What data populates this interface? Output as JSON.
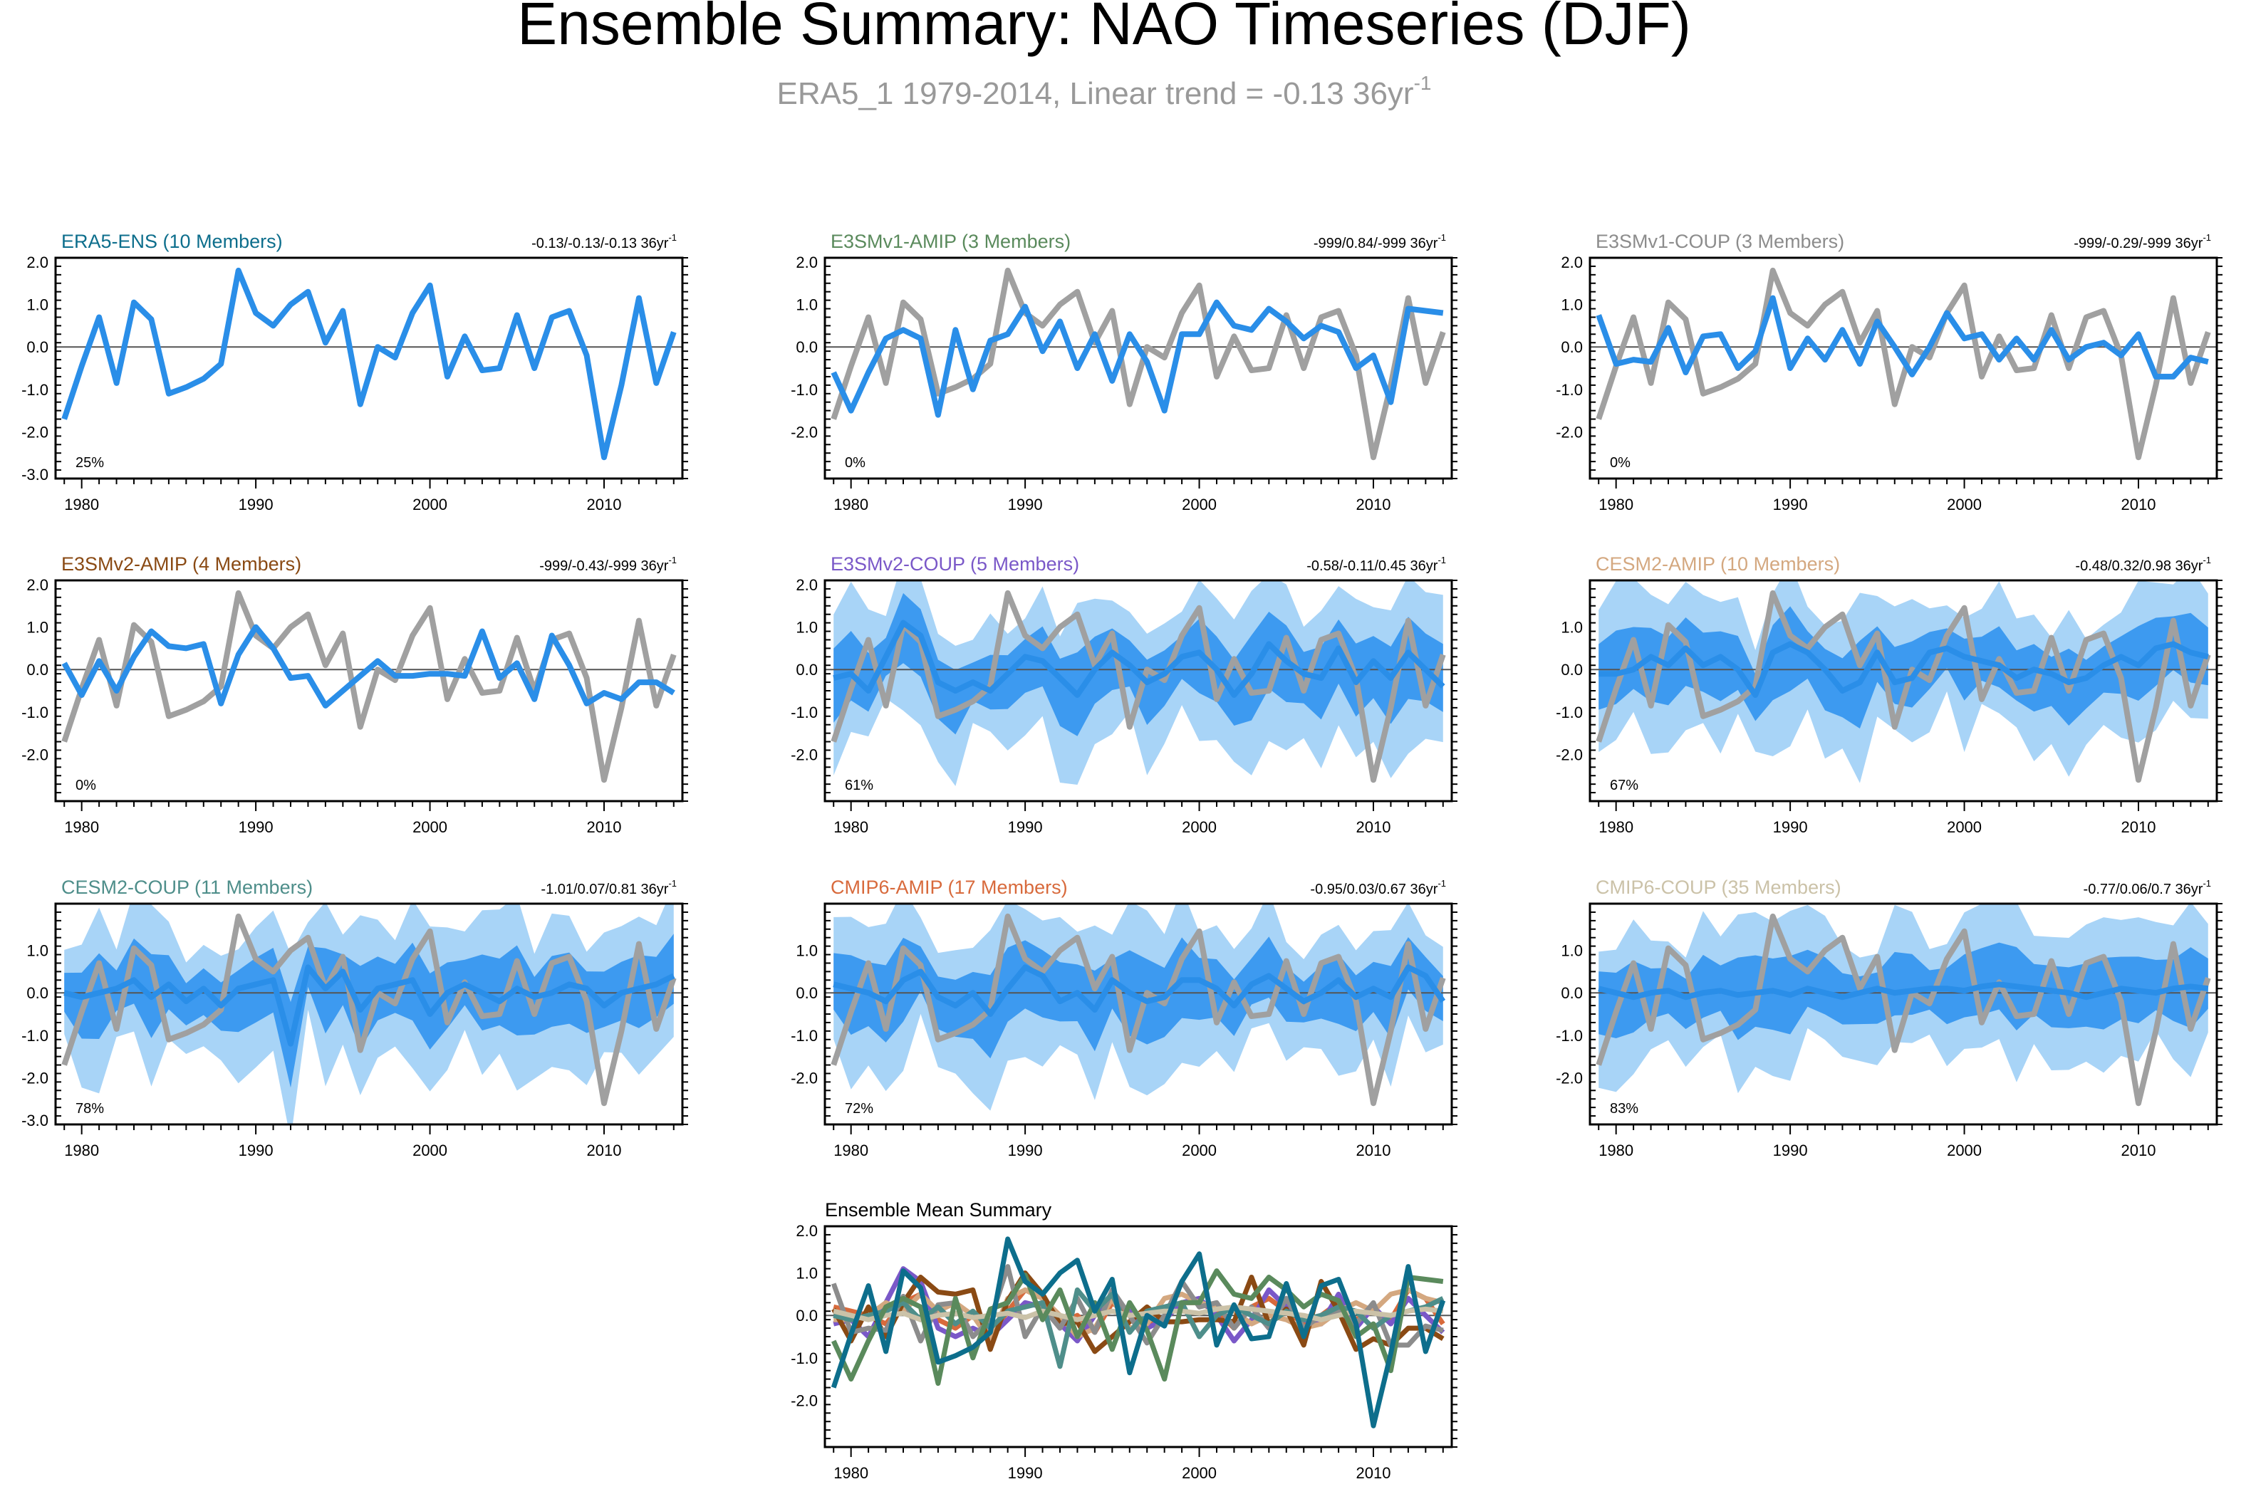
{
  "figure": {
    "title": "Ensemble Summary: NAO Timeseries (DJF)",
    "subtitle_main": "ERA5_1 1979-2014, Linear trend = -0.13 36yr",
    "subtitle_sup": "-1"
  },
  "colors": {
    "obs_grey": "#a0a0a0",
    "mean_blue": "#2a8ee8",
    "band_outer": "#a8d4f7",
    "band_inner": "#3d9af0",
    "zero_line": "#555555"
  },
  "chart_data": [
    {
      "type": "line",
      "title": "ERA5-ENS (10 Members)",
      "title_color": "#0d6e8c",
      "trend_text": "-0.13/-0.13/-0.13 36yr",
      "trend_sup": "-1",
      "pct_label": "25%",
      "ylim": [
        -3.1,
        2.1
      ],
      "yticks": [
        2,
        1,
        0,
        -1,
        -2,
        -3
      ],
      "ytick_labels": [
        "2.0",
        "1.0",
        "0.0",
        "-1.0",
        "-2.0",
        "-3.0"
      ],
      "xlim": [
        1978.5,
        2014.5
      ],
      "xticks": [
        1980,
        1990,
        2000,
        2010
      ],
      "xtick_labels": [
        "1980",
        "1990",
        "2000",
        "2010"
      ],
      "obs": false,
      "spread": 0,
      "series_model": [
        -1.7,
        -0.45,
        0.7,
        -0.85,
        1.05,
        0.65,
        -1.1,
        -0.95,
        -0.75,
        -0.4,
        1.8,
        0.8,
        0.5,
        1.0,
        1.3,
        0.1,
        0.85,
        -1.35,
        0.0,
        -0.25,
        0.8,
        1.45,
        -0.7,
        0.25,
        -0.55,
        -0.5,
        0.75,
        -0.5,
        0.7,
        0.85,
        -0.2,
        -2.6,
        -0.9,
        1.15,
        -0.85,
        0.35
      ]
    },
    {
      "type": "line",
      "title": "E3SMv1-AMIP (3 Members)",
      "title_color": "#5a8a5c",
      "trend_text": "-999/0.84/-999 36yr",
      "trend_sup": "-1",
      "pct_label": "0%",
      "ylim": [
        -3.1,
        2.1
      ],
      "yticks": [
        2,
        1,
        0,
        -1,
        -2
      ],
      "ytick_labels": [
        "2.0",
        "1.0",
        "0.0",
        "-1.0",
        "-2.0"
      ],
      "xlim": [
        1978.5,
        2014.5
      ],
      "xticks": [
        1980,
        1990,
        2000,
        2010
      ],
      "xtick_labels": [
        "1980",
        "1990",
        "2000",
        "2010"
      ],
      "obs": true,
      "spread": 0,
      "series_model": [
        -0.6,
        -1.5,
        -0.6,
        0.2,
        0.4,
        0.2,
        -1.6,
        0.4,
        -1.0,
        0.15,
        0.3,
        0.95,
        -0.1,
        0.6,
        -0.5,
        0.3,
        -0.8,
        0.3,
        -0.35,
        -1.5,
        0.3,
        0.3,
        1.05,
        0.5,
        0.4,
        0.9,
        0.6,
        0.2,
        0.5,
        0.35,
        -0.5,
        -0.2,
        -1.3,
        0.9,
        0.85,
        0.8
      ]
    },
    {
      "type": "line",
      "title": "E3SMv1-COUP (3 Members)",
      "title_color": "#8c8c8c",
      "trend_text": "-999/-0.29/-999 36yr",
      "trend_sup": "-1",
      "pct_label": "0%",
      "ylim": [
        -3.1,
        2.1
      ],
      "yticks": [
        2,
        1,
        0,
        -1,
        -2
      ],
      "ytick_labels": [
        "2.0",
        "1.0",
        "0.0",
        "-1.0",
        "-2.0"
      ],
      "xlim": [
        1978.5,
        2014.5
      ],
      "xticks": [
        1980,
        1990,
        2000,
        2010
      ],
      "xtick_labels": [
        "1980",
        "1990",
        "2000",
        "2010"
      ],
      "obs": true,
      "spread": 0,
      "series_model": [
        0.75,
        -0.4,
        -0.3,
        -0.35,
        0.45,
        -0.6,
        0.25,
        0.3,
        -0.5,
        -0.1,
        1.15,
        -0.5,
        0.2,
        -0.3,
        0.4,
        -0.4,
        0.6,
        0.0,
        -0.65,
        0.0,
        0.8,
        0.2,
        0.3,
        -0.3,
        0.2,
        -0.3,
        0.4,
        -0.3,
        0.0,
        0.1,
        -0.2,
        0.3,
        -0.7,
        -0.7,
        -0.25,
        -0.35
      ]
    },
    {
      "type": "line",
      "title": "E3SMv2-AMIP (4 Members)",
      "title_color": "#8a4a14",
      "trend_text": "-999/-0.43/-999 36yr",
      "trend_sup": "-1",
      "pct_label": "0%",
      "ylim": [
        -3.1,
        2.1
      ],
      "yticks": [
        2,
        1,
        0,
        -1,
        -2
      ],
      "ytick_labels": [
        "2.0",
        "1.0",
        "0.0",
        "-1.0",
        "-2.0"
      ],
      "xlim": [
        1978.5,
        2014.5
      ],
      "xticks": [
        1980,
        1990,
        2000,
        2010
      ],
      "xtick_labels": [
        "1980",
        "1990",
        "2000",
        "2010"
      ],
      "obs": true,
      "spread": 0,
      "series_model": [
        0.15,
        -0.6,
        0.2,
        -0.5,
        0.3,
        0.9,
        0.55,
        0.5,
        0.6,
        -0.8,
        0.35,
        1.0,
        0.5,
        -0.2,
        -0.15,
        -0.85,
        -0.5,
        -0.15,
        0.2,
        -0.15,
        -0.15,
        -0.1,
        -0.1,
        -0.15,
        0.9,
        -0.2,
        0.15,
        -0.7,
        0.8,
        0.1,
        -0.8,
        -0.55,
        -0.7,
        -0.3,
        -0.3,
        -0.55
      ]
    },
    {
      "type": "line",
      "title": "E3SMv2-COUP (5 Members)",
      "title_color": "#7a58c8",
      "trend_text": "-0.58/-0.11/0.45 36yr",
      "trend_sup": "-1",
      "pct_label": "61%",
      "ylim": [
        -3.1,
        2.1
      ],
      "yticks": [
        2,
        1,
        0,
        -1,
        -2
      ],
      "ytick_labels": [
        "2.0",
        "1.0",
        "0.0",
        "-1.0",
        "-2.0"
      ],
      "xlim": [
        1978.5,
        2014.5
      ],
      "xticks": [
        1980,
        1990,
        2000,
        2010
      ],
      "xtick_labels": [
        "1980",
        "1990",
        "2000",
        "2010"
      ],
      "obs": true,
      "spread": 1.0,
      "series_model": [
        -0.2,
        -0.1,
        -0.5,
        0.3,
        1.1,
        0.8,
        -0.3,
        -0.5,
        -0.3,
        -0.5,
        -0.1,
        0.3,
        0.2,
        -0.2,
        -0.6,
        0.0,
        0.4,
        0.1,
        -0.3,
        -0.1,
        0.3,
        0.4,
        0.0,
        -0.6,
        -0.1,
        0.6,
        0.2,
        -0.1,
        -0.2,
        0.5,
        -0.3,
        0.2,
        -0.2,
        0.4,
        0.0,
        -0.4
      ]
    },
    {
      "type": "line",
      "title": "CESM2-AMIP (10 Members)",
      "title_color": "#d4a880",
      "trend_text": "-0.48/0.32/0.98 36yr",
      "trend_sup": "-1",
      "pct_label": "67%",
      "ylim": [
        -3.1,
        2.1
      ],
      "yticks": [
        1,
        0,
        -1,
        -2
      ],
      "ytick_labels": [
        "1.0",
        "0.0",
        "-1.0",
        "-2.0"
      ],
      "xlim": [
        1978.5,
        2014.5
      ],
      "xticks": [
        1980,
        1990,
        2000,
        2010
      ],
      "xtick_labels": [
        "1980",
        "1990",
        "2000",
        "2010"
      ],
      "obs": true,
      "spread": 1.0,
      "series_model": [
        -0.1,
        -0.1,
        0.0,
        0.3,
        0.1,
        0.5,
        0.1,
        0.3,
        0.0,
        -0.6,
        0.4,
        0.6,
        0.4,
        0.0,
        -0.5,
        -0.3,
        0.4,
        -0.3,
        -0.2,
        0.4,
        0.5,
        0.3,
        0.2,
        0.1,
        -0.2,
        0.0,
        -0.1,
        -0.3,
        -0.2,
        0.1,
        0.3,
        0.1,
        0.5,
        0.6,
        0.4,
        0.3
      ]
    },
    {
      "type": "line",
      "title": "CESM2-COUP (11 Members)",
      "title_color": "#4e8e8a",
      "trend_text": "-1.01/0.07/0.81 36yr",
      "trend_sup": "-1",
      "pct_label": "78%",
      "ylim": [
        -3.1,
        2.1
      ],
      "yticks": [
        1,
        0,
        -1,
        -2,
        -3
      ],
      "ytick_labels": [
        "1.0",
        "0.0",
        "-1.0",
        "-2.0",
        "-3.0"
      ],
      "xlim": [
        1978.5,
        2014.5
      ],
      "xticks": [
        1980,
        1990,
        2000,
        2010
      ],
      "xtick_labels": [
        "1980",
        "1990",
        "2000",
        "2010"
      ],
      "obs": true,
      "spread": 1.0,
      "series_model": [
        0.0,
        -0.1,
        0.0,
        0.1,
        0.3,
        -0.1,
        0.2,
        -0.2,
        0.1,
        -0.3,
        0.1,
        0.2,
        0.3,
        -1.2,
        0.6,
        0.1,
        0.5,
        -0.4,
        0.1,
        0.2,
        0.3,
        -0.5,
        0.0,
        0.2,
        0.0,
        -0.2,
        0.1,
        -0.1,
        0.0,
        0.2,
        0.1,
        -0.3,
        0.0,
        0.1,
        0.2,
        0.4
      ]
    },
    {
      "type": "line",
      "title": "CMIP6-AMIP (17 Members)",
      "title_color": "#d86a3c",
      "trend_text": "-0.95/0.03/0.67 36yr",
      "trend_sup": "-1",
      "pct_label": "72%",
      "ylim": [
        -3.1,
        2.1
      ],
      "yticks": [
        1,
        0,
        -1,
        -2
      ],
      "ytick_labels": [
        "1.0",
        "0.0",
        "-1.0",
        "-2.0"
      ],
      "xlim": [
        1978.5,
        2014.5
      ],
      "xticks": [
        1980,
        1990,
        2000,
        2010
      ],
      "xtick_labels": [
        "1980",
        "1990",
        "2000",
        "2010"
      ],
      "obs": true,
      "spread": 1.0,
      "series_model": [
        0.2,
        0.1,
        0.0,
        -0.2,
        0.3,
        0.5,
        -0.1,
        -0.3,
        0.0,
        -0.5,
        0.1,
        0.6,
        0.4,
        -0.2,
        0.0,
        -0.4,
        0.3,
        0.0,
        -0.2,
        -0.1,
        0.3,
        0.3,
        0.1,
        -0.3,
        0.2,
        0.4,
        0.1,
        -0.2,
        0.0,
        0.3,
        -0.1,
        0.1,
        -0.1,
        0.6,
        0.4,
        -0.2
      ]
    },
    {
      "type": "line",
      "title": "CMIP6-COUP (35 Members)",
      "title_color": "#cbc2a8",
      "trend_text": "-0.77/0.06/0.7 36yr",
      "trend_sup": "-1",
      "pct_label": "83%",
      "ylim": [
        -3.1,
        2.1
      ],
      "yticks": [
        1,
        0,
        -1,
        -2
      ],
      "ytick_labels": [
        "1.0",
        "0.0",
        "-1.0",
        "-2.0"
      ],
      "xlim": [
        1978.5,
        2014.5
      ],
      "xticks": [
        1980,
        1990,
        2000,
        2010
      ],
      "xtick_labels": [
        "1980",
        "1990",
        "2000",
        "2010"
      ],
      "obs": true,
      "spread": 0.95,
      "series_model": [
        0.1,
        0.0,
        -0.1,
        0.0,
        0.05,
        -0.1,
        0.0,
        0.05,
        -0.05,
        0.0,
        0.05,
        -0.05,
        0.1,
        0.0,
        -0.1,
        0.0,
        0.1,
        0.0,
        0.05,
        0.1,
        0.1,
        0.05,
        0.15,
        0.2,
        0.15,
        0.1,
        0.05,
        0.0,
        -0.1,
        0.0,
        0.1,
        0.05,
        0.0,
        0.1,
        0.15,
        0.1
      ]
    },
    {
      "type": "line",
      "title": "Ensemble Mean Summary",
      "title_color": "#000000",
      "trend_text": "",
      "trend_sup": "",
      "pct_label": "",
      "ylim": [
        -3.1,
        2.1
      ],
      "yticks": [
        2,
        1,
        0,
        -1,
        -2
      ],
      "ytick_labels": [
        "2.0",
        "1.0",
        "0.0",
        "-1.0",
        "-2.0"
      ],
      "xlim": [
        1978.5,
        2014.5
      ],
      "xticks": [
        1980,
        1990,
        2000,
        2010
      ],
      "xtick_labels": [
        "1980",
        "1990",
        "2000",
        "2010"
      ],
      "obs": false,
      "spread": 0,
      "summary": true,
      "summary_colors": [
        "#0d6e8c",
        "#5a8a5c",
        "#8a4a14",
        "#7a58c8",
        "#d4a880",
        "#4e8e8a",
        "#d86a3c",
        "#cbc2a8"
      ]
    }
  ],
  "obs_series": {
    "name": "ERA5_1",
    "years": [
      1979,
      1980,
      1981,
      1982,
      1983,
      1984,
      1985,
      1986,
      1987,
      1988,
      1989,
      1990,
      1991,
      1992,
      1993,
      1994,
      1995,
      1996,
      1997,
      1998,
      1999,
      2000,
      2001,
      2002,
      2003,
      2004,
      2005,
      2006,
      2007,
      2008,
      2009,
      2010,
      2011,
      2012,
      2013,
      2014
    ],
    "values": [
      -1.7,
      -0.45,
      0.7,
      -0.85,
      1.05,
      0.65,
      -1.1,
      -0.95,
      -0.75,
      -0.4,
      1.8,
      0.8,
      0.5,
      1.0,
      1.3,
      0.1,
      0.85,
      -1.35,
      0.0,
      -0.25,
      0.8,
      1.45,
      -0.7,
      0.25,
      -0.55,
      -0.5,
      0.75,
      -0.5,
      0.7,
      0.85,
      -0.2,
      -2.6,
      -0.9,
      1.15,
      -0.85,
      0.35
    ]
  }
}
